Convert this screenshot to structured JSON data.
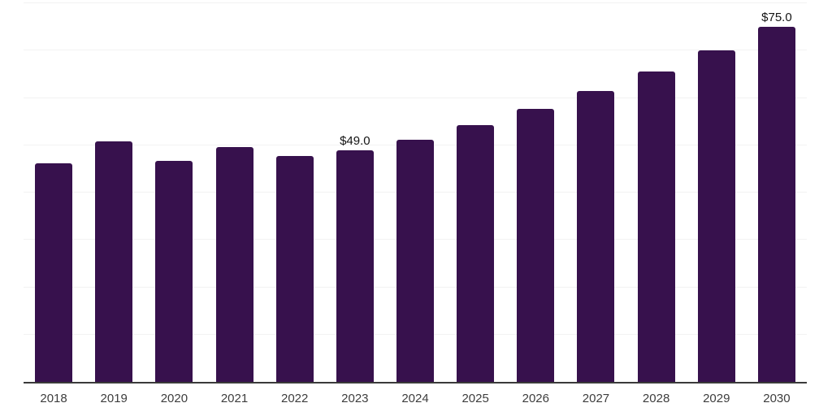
{
  "chart_data": {
    "type": "bar",
    "title": "",
    "xlabel": "",
    "ylabel": "",
    "categories": [
      "2018",
      "2019",
      "2020",
      "2021",
      "2022",
      "2023",
      "2024",
      "2025",
      "2026",
      "2027",
      "2028",
      "2029",
      "2030"
    ],
    "values": [
      46.2,
      50.9,
      46.7,
      49.6,
      47.7,
      49.0,
      51.1,
      54.2,
      57.6,
      61.4,
      65.5,
      70.1,
      75.0
    ],
    "annotations": [
      {
        "category": "2023",
        "text": "$49.0"
      },
      {
        "category": "2030",
        "text": "$75.0"
      }
    ],
    "ylim": [
      0,
      80
    ],
    "grid_step": 10,
    "grid_on": true,
    "legend": "none",
    "colors": {
      "bar": "#37114d",
      "gridline": "#f2f2f2",
      "axis_line": "#3a3a3a",
      "tick_label": "#3d3d3d",
      "annotation_text": "#141414",
      "background": "#ffffff"
    }
  }
}
